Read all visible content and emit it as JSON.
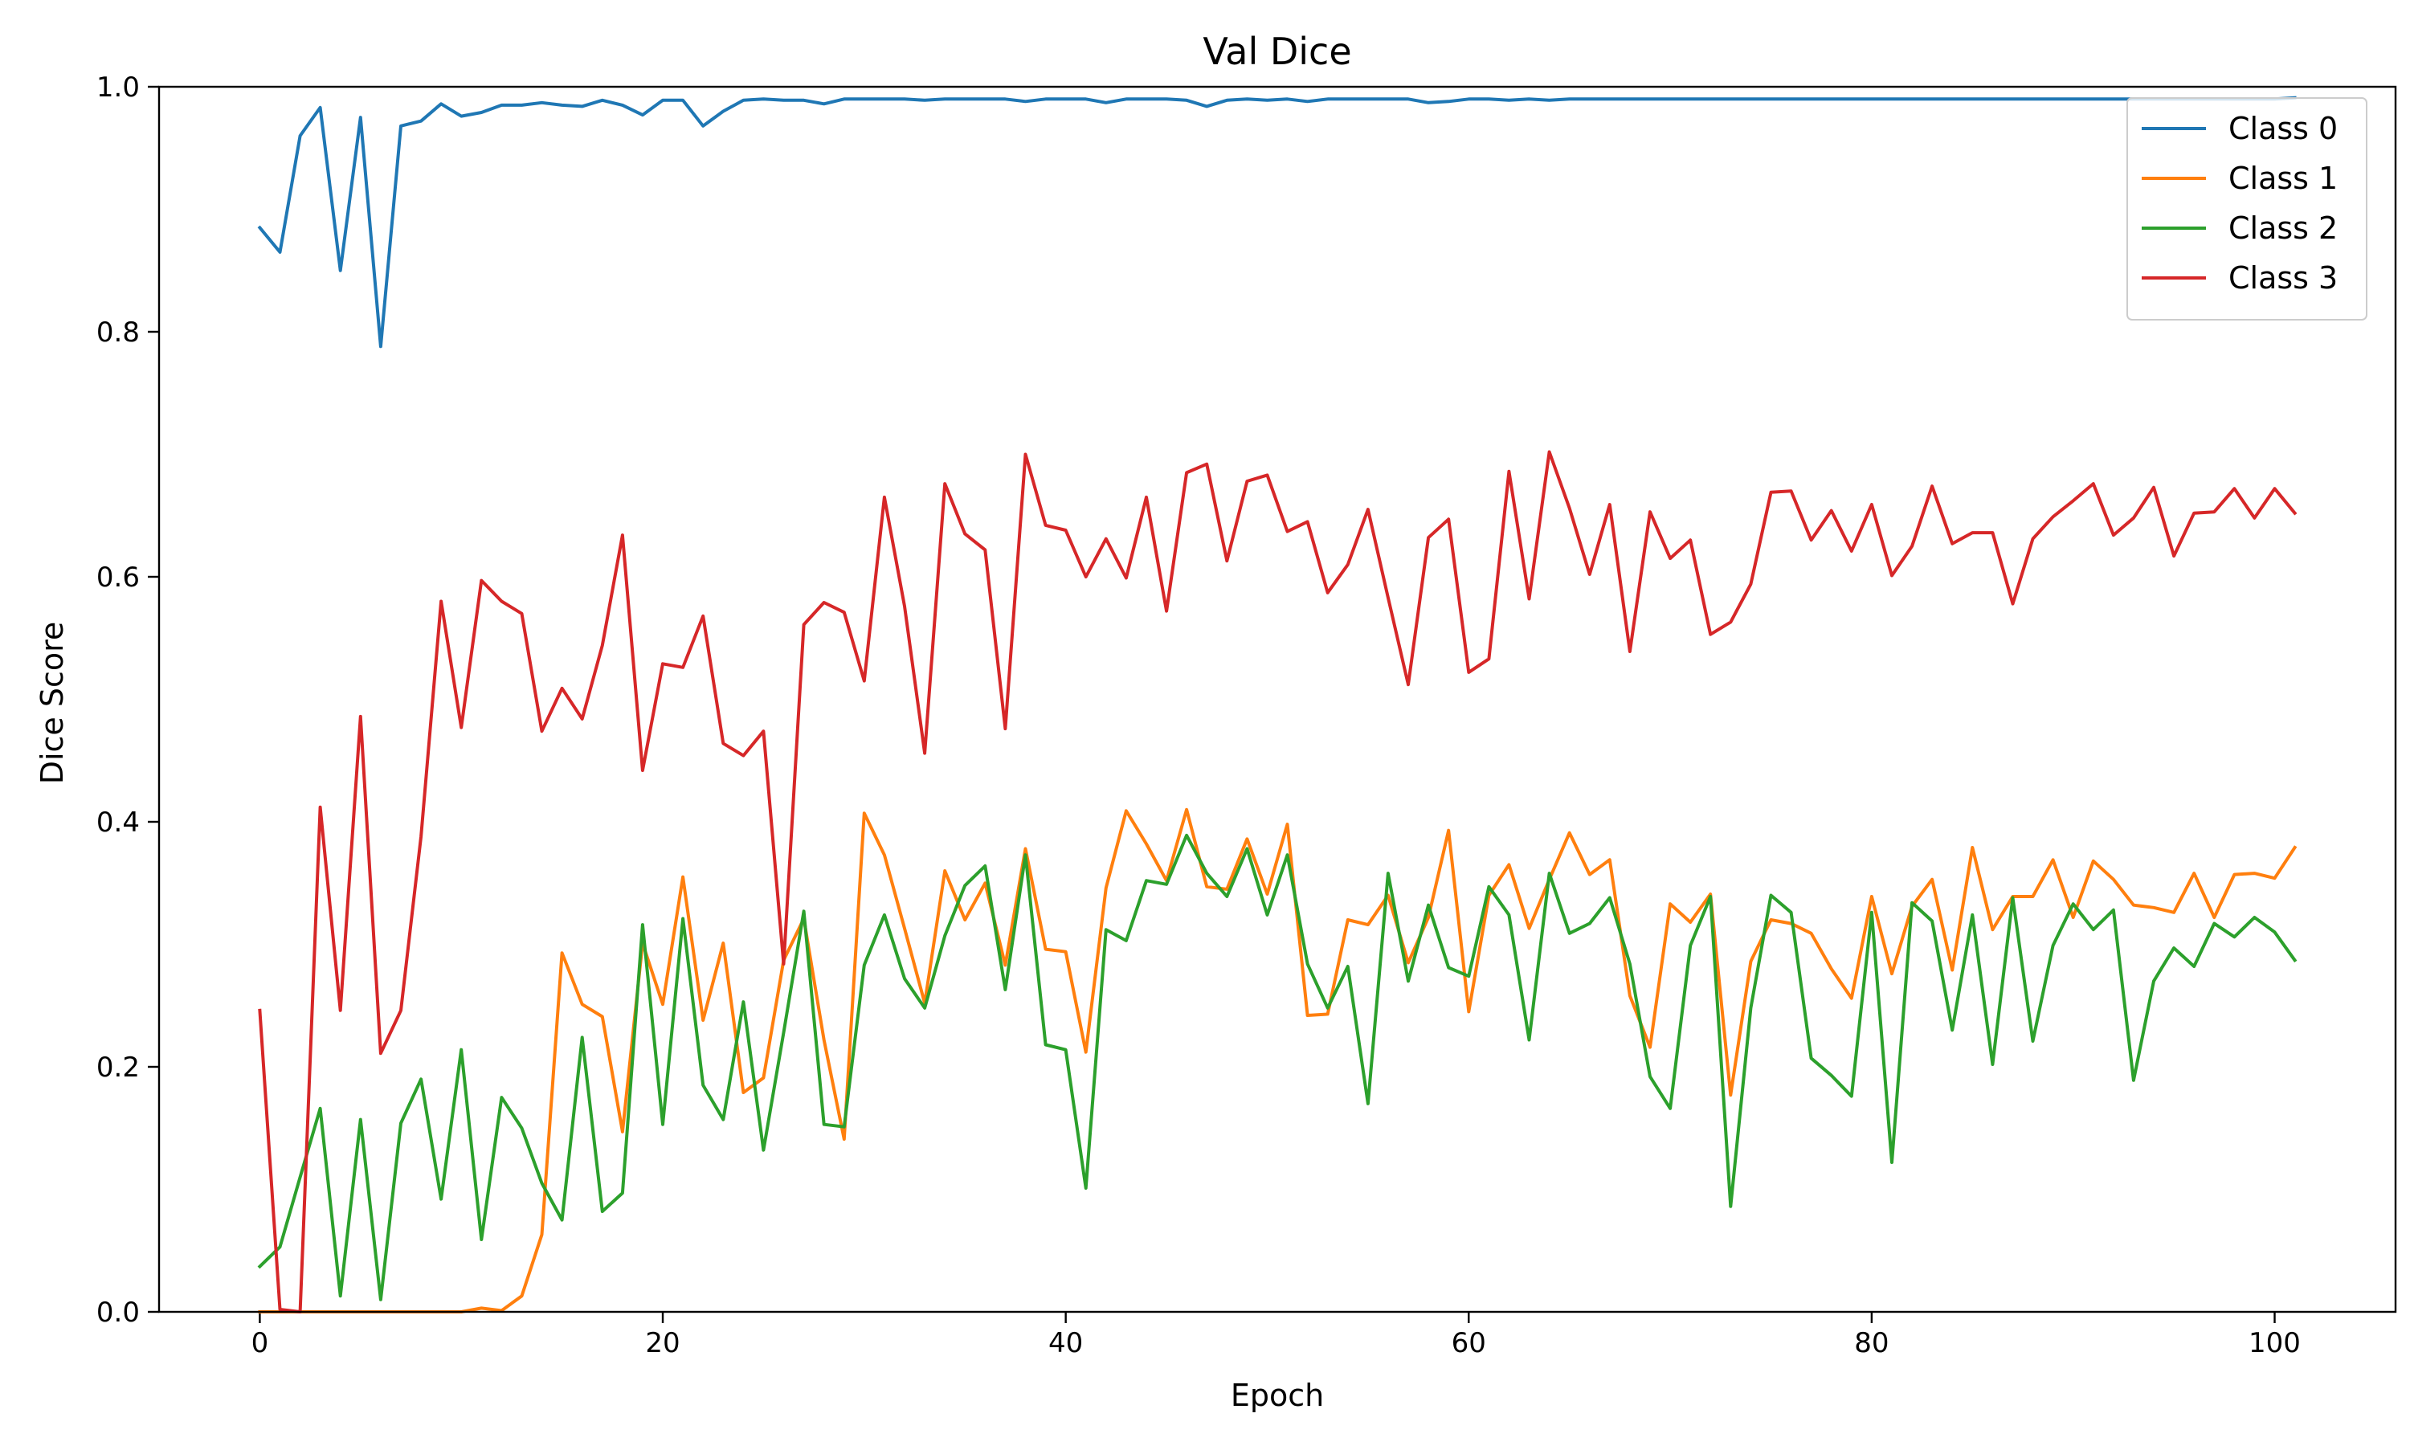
{
  "chart_data": {
    "type": "line",
    "title": "Val Dice",
    "xlabel": "Epoch",
    "ylabel": "Dice Score",
    "xlim": [
      -5,
      106
    ],
    "ylim": [
      0.0,
      1.0
    ],
    "xticks": [
      0,
      20,
      40,
      60,
      80,
      100
    ],
    "yticks": [
      0.0,
      0.2,
      0.4,
      0.6,
      0.8,
      1.0
    ],
    "xtick_labels": [
      "0",
      "20",
      "40",
      "60",
      "80",
      "100"
    ],
    "ytick_labels": [
      "0.0",
      "0.2",
      "0.4",
      "0.6",
      "0.8",
      "1.0"
    ],
    "grid": false,
    "legend_position": "top-right",
    "x_start": 0,
    "series": [
      {
        "name": "Class 0",
        "color": "#1f77b4",
        "values": [
          0.885,
          0.865,
          0.96,
          0.983,
          0.85,
          0.975,
          0.788,
          0.968,
          0.972,
          0.986,
          0.976,
          0.979,
          0.985,
          0.985,
          0.987,
          0.985,
          0.984,
          0.989,
          0.985,
          0.977,
          0.989,
          0.989,
          0.968,
          0.98,
          0.989,
          0.99,
          0.989,
          0.989,
          0.986,
          0.99,
          0.99,
          0.99,
          0.99,
          0.989,
          0.99,
          0.99,
          0.99,
          0.99,
          0.988,
          0.99,
          0.99,
          0.99,
          0.987,
          0.99,
          0.99,
          0.99,
          0.989,
          0.984,
          0.989,
          0.99,
          0.989,
          0.99,
          0.988,
          0.99,
          0.99,
          0.99,
          0.99,
          0.99,
          0.987,
          0.988,
          0.99,
          0.99,
          0.989,
          0.99,
          0.989,
          0.99,
          0.99,
          0.99,
          0.99,
          0.99,
          0.99,
          0.99,
          0.99,
          0.99,
          0.99,
          0.99,
          0.99,
          0.99,
          0.99,
          0.99,
          0.99,
          0.99,
          0.99,
          0.99,
          0.99,
          0.99,
          0.99,
          0.99,
          0.99,
          0.99,
          0.99,
          0.99,
          0.99,
          0.99,
          0.99,
          0.99,
          0.99,
          0.99,
          0.99,
          0.99,
          0.99,
          0.991
        ]
      },
      {
        "name": "Class 1",
        "color": "#ff7f0e",
        "values": [
          0.0,
          0.0,
          0.0,
          0.0,
          0.0,
          0.0,
          0.0,
          0.0,
          0.0,
          0.0,
          0.0,
          0.003,
          0.001,
          0.013,
          0.063,
          0.293,
          0.251,
          0.241,
          0.147,
          0.301,
          0.251,
          0.355,
          0.238,
          0.301,
          0.179,
          0.191,
          0.287,
          0.321,
          0.222,
          0.141,
          0.407,
          0.373,
          0.313,
          0.252,
          0.36,
          0.32,
          0.35,
          0.283,
          0.378,
          0.296,
          0.294,
          0.212,
          0.346,
          0.409,
          0.382,
          0.352,
          0.41,
          0.347,
          0.345,
          0.386,
          0.341,
          0.398,
          0.242,
          0.243,
          0.32,
          0.316,
          0.34,
          0.285,
          0.322,
          0.393,
          0.245,
          0.34,
          0.365,
          0.313,
          0.353,
          0.391,
          0.357,
          0.369,
          0.258,
          0.216,
          0.333,
          0.318,
          0.341,
          0.177,
          0.286,
          0.32,
          0.317,
          0.309,
          0.28,
          0.256,
          0.339,
          0.276,
          0.331,
          0.353,
          0.279,
          0.379,
          0.312,
          0.339,
          0.339,
          0.369,
          0.322,
          0.368,
          0.353,
          0.332,
          0.33,
          0.326,
          0.358,
          0.322,
          0.357,
          0.358,
          0.354,
          0.379
        ]
      },
      {
        "name": "Class 2",
        "color": "#2ca02c",
        "values": [
          0.037,
          0.053,
          0.11,
          0.166,
          0.013,
          0.157,
          0.01,
          0.154,
          0.19,
          0.092,
          0.214,
          0.059,
          0.175,
          0.15,
          0.105,
          0.075,
          0.224,
          0.082,
          0.097,
          0.316,
          0.153,
          0.321,
          0.185,
          0.157,
          0.253,
          0.132,
          0.228,
          0.327,
          0.153,
          0.151,
          0.283,
          0.324,
          0.272,
          0.248,
          0.307,
          0.348,
          0.364,
          0.263,
          0.373,
          0.218,
          0.214,
          0.101,
          0.312,
          0.303,
          0.352,
          0.349,
          0.389,
          0.358,
          0.339,
          0.378,
          0.324,
          0.373,
          0.284,
          0.248,
          0.282,
          0.17,
          0.358,
          0.27,
          0.332,
          0.281,
          0.274,
          0.347,
          0.324,
          0.222,
          0.358,
          0.309,
          0.317,
          0.338,
          0.284,
          0.192,
          0.166,
          0.299,
          0.339,
          0.086,
          0.248,
          0.34,
          0.326,
          0.207,
          0.193,
          0.176,
          0.326,
          0.122,
          0.334,
          0.319,
          0.23,
          0.324,
          0.202,
          0.338,
          0.221,
          0.299,
          0.333,
          0.312,
          0.328,
          0.189,
          0.27,
          0.297,
          0.282,
          0.317,
          0.306,
          0.322,
          0.31,
          0.287
        ]
      },
      {
        "name": "Class 3",
        "color": "#d62728",
        "values": [
          0.246,
          0.002,
          0.0,
          0.412,
          0.246,
          0.486,
          0.211,
          0.246,
          0.388,
          0.58,
          0.477,
          0.597,
          0.58,
          0.57,
          0.474,
          0.509,
          0.484,
          0.544,
          0.634,
          0.442,
          0.529,
          0.526,
          0.568,
          0.464,
          0.454,
          0.474,
          0.284,
          0.561,
          0.579,
          0.571,
          0.515,
          0.665,
          0.576,
          0.456,
          0.676,
          0.635,
          0.622,
          0.476,
          0.7,
          0.642,
          0.638,
          0.6,
          0.631,
          0.599,
          0.665,
          0.572,
          0.685,
          0.692,
          0.613,
          0.678,
          0.683,
          0.637,
          0.645,
          0.587,
          0.61,
          0.655,
          0.583,
          0.512,
          0.632,
          0.647,
          0.522,
          0.533,
          0.686,
          0.582,
          0.702,
          0.656,
          0.602,
          0.659,
          0.539,
          0.653,
          0.615,
          0.63,
          0.553,
          0.563,
          0.594,
          0.669,
          0.67,
          0.63,
          0.654,
          0.621,
          0.659,
          0.601,
          0.625,
          0.674,
          0.627,
          0.636,
          0.636,
          0.578,
          0.631,
          0.649,
          0.662,
          0.676,
          0.634,
          0.648,
          0.673,
          0.617,
          0.652,
          0.653,
          0.672,
          0.648,
          0.672,
          0.652
        ]
      }
    ]
  }
}
